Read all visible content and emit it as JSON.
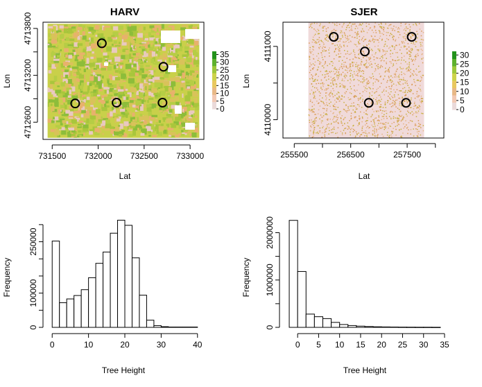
{
  "chart_data": [
    {
      "id": "harv_map",
      "type": "heatmap",
      "title": "HARV",
      "xlabel": "Lat",
      "ylabel": "Lon",
      "xlim": [
        731400,
        733150
      ],
      "ylim": [
        4712380,
        4713880
      ],
      "xticks": [
        731500,
        732000,
        732500,
        733000
      ],
      "xtick_labels": [
        "731500",
        "732000",
        "732500",
        "733000"
      ],
      "yticks": [
        4712600,
        4713200,
        4713800
      ],
      "ytick_labels": [
        "4712600",
        "4713200",
        "4713800"
      ],
      "yticks_minor": [
        4712900,
        4713500
      ],
      "raster_extent": {
        "x": [
          731450,
          733100
        ],
        "y": [
          4712400,
          4713860
        ]
      },
      "plots": [
        {
          "x": 732040,
          "y": 4713610
        },
        {
          "x": 732710,
          "y": 4713310
        },
        {
          "x": 731750,
          "y": 4712840
        },
        {
          "x": 732200,
          "y": 4712850
        },
        {
          "x": 732700,
          "y": 4712850
        }
      ],
      "legend": {
        "ticks": [
          "35",
          "30",
          "25",
          "20",
          "15",
          "10",
          "5",
          "0"
        ],
        "range": [
          0,
          37
        ],
        "colors": [
          "#eadada",
          "#f2c9b4",
          "#e8b886",
          "#e9c85f",
          "#cdd34a",
          "#9ec83b",
          "#5fb12d",
          "#23921b"
        ]
      },
      "palette": {
        "background": "#c9d04a",
        "dark_green": "#8dbd3a",
        "orange": "#e8b16c",
        "pink": "#e9c9c0",
        "gap": "#ffffff"
      }
    },
    {
      "id": "sjer_map",
      "type": "heatmap",
      "title": "SJER",
      "xlabel": "Lat",
      "ylabel": "Lon",
      "xlim": [
        255300,
        258150
      ],
      "ylim": [
        4109750,
        4111330
      ],
      "xticks": [
        255500,
        256000,
        256500,
        257000,
        257500,
        258000
      ],
      "xtick_labels": [
        "255500",
        "",
        "256500",
        "",
        "257500",
        ""
      ],
      "yticks": [
        4110000,
        4110500,
        4111000
      ],
      "ytick_labels": [
        "4110000",
        "",
        "4111000"
      ],
      "raster_extent": {
        "x": [
          255750,
          257800
        ],
        "y": [
          4109750,
          4111330
        ]
      },
      "plots": [
        {
          "x": 256200,
          "y": 4111130
        },
        {
          "x": 256750,
          "y": 4110930
        },
        {
          "x": 257580,
          "y": 4111130
        },
        {
          "x": 256820,
          "y": 4110230
        },
        {
          "x": 257480,
          "y": 4110230
        }
      ],
      "legend": {
        "ticks": [
          "30",
          "25",
          "20",
          "15",
          "10",
          "5",
          "0"
        ],
        "range": [
          0,
          32
        ],
        "colors": [
          "#eadada",
          "#f2c9b4",
          "#e8b886",
          "#e9c85f",
          "#cdd34a",
          "#9ec83b",
          "#5fb12d",
          "#23921b"
        ]
      },
      "palette": {
        "background": "#f0dada",
        "speck": "#d99a55",
        "speck2": "#c8b040"
      }
    },
    {
      "id": "harv_hist",
      "type": "bar",
      "xlabel": "Tree Height",
      "ylabel": "Frequency",
      "bin_width": 2,
      "bin_start": 0,
      "values": [
        252000,
        72000,
        83000,
        93000,
        110000,
        145000,
        187000,
        220000,
        275000,
        313000,
        298000,
        203000,
        94000,
        21000,
        5000,
        2000,
        1000,
        1000,
        1000,
        1000
      ],
      "xlim": [
        -1,
        41
      ],
      "ylim": [
        0,
        320000
      ],
      "xticks": [
        0,
        10,
        20,
        30,
        40
      ],
      "xtick_labels": [
        "0",
        "10",
        "20",
        "30",
        "40"
      ],
      "yticks": [
        0,
        50000,
        100000,
        150000,
        200000,
        250000,
        300000
      ],
      "ytick_labels": [
        "0",
        "",
        "100000",
        "",
        "",
        "250000",
        ""
      ]
    },
    {
      "id": "sjer_hist",
      "type": "bar",
      "xlabel": "Tree Height",
      "ylabel": "Frequency",
      "bin_width": 2,
      "bin_start": -2,
      "values": [
        2260000,
        1180000,
        280000,
        225000,
        185000,
        105000,
        60000,
        38000,
        26000,
        18000,
        12000,
        9000,
        7000,
        5000,
        4000,
        3000,
        3000,
        2000
      ],
      "xlim": [
        -3,
        35
      ],
      "ylim": [
        0,
        2300000
      ],
      "xticks": [
        0,
        5,
        10,
        15,
        20,
        25,
        30,
        35
      ],
      "xtick_labels": [
        "0",
        "5",
        "10",
        "15",
        "20",
        "25",
        "30",
        "35"
      ],
      "yticks": [
        0,
        500000,
        1000000,
        1500000,
        2000000
      ],
      "ytick_labels": [
        "0",
        "",
        "1000000",
        "",
        "2000000"
      ]
    }
  ]
}
